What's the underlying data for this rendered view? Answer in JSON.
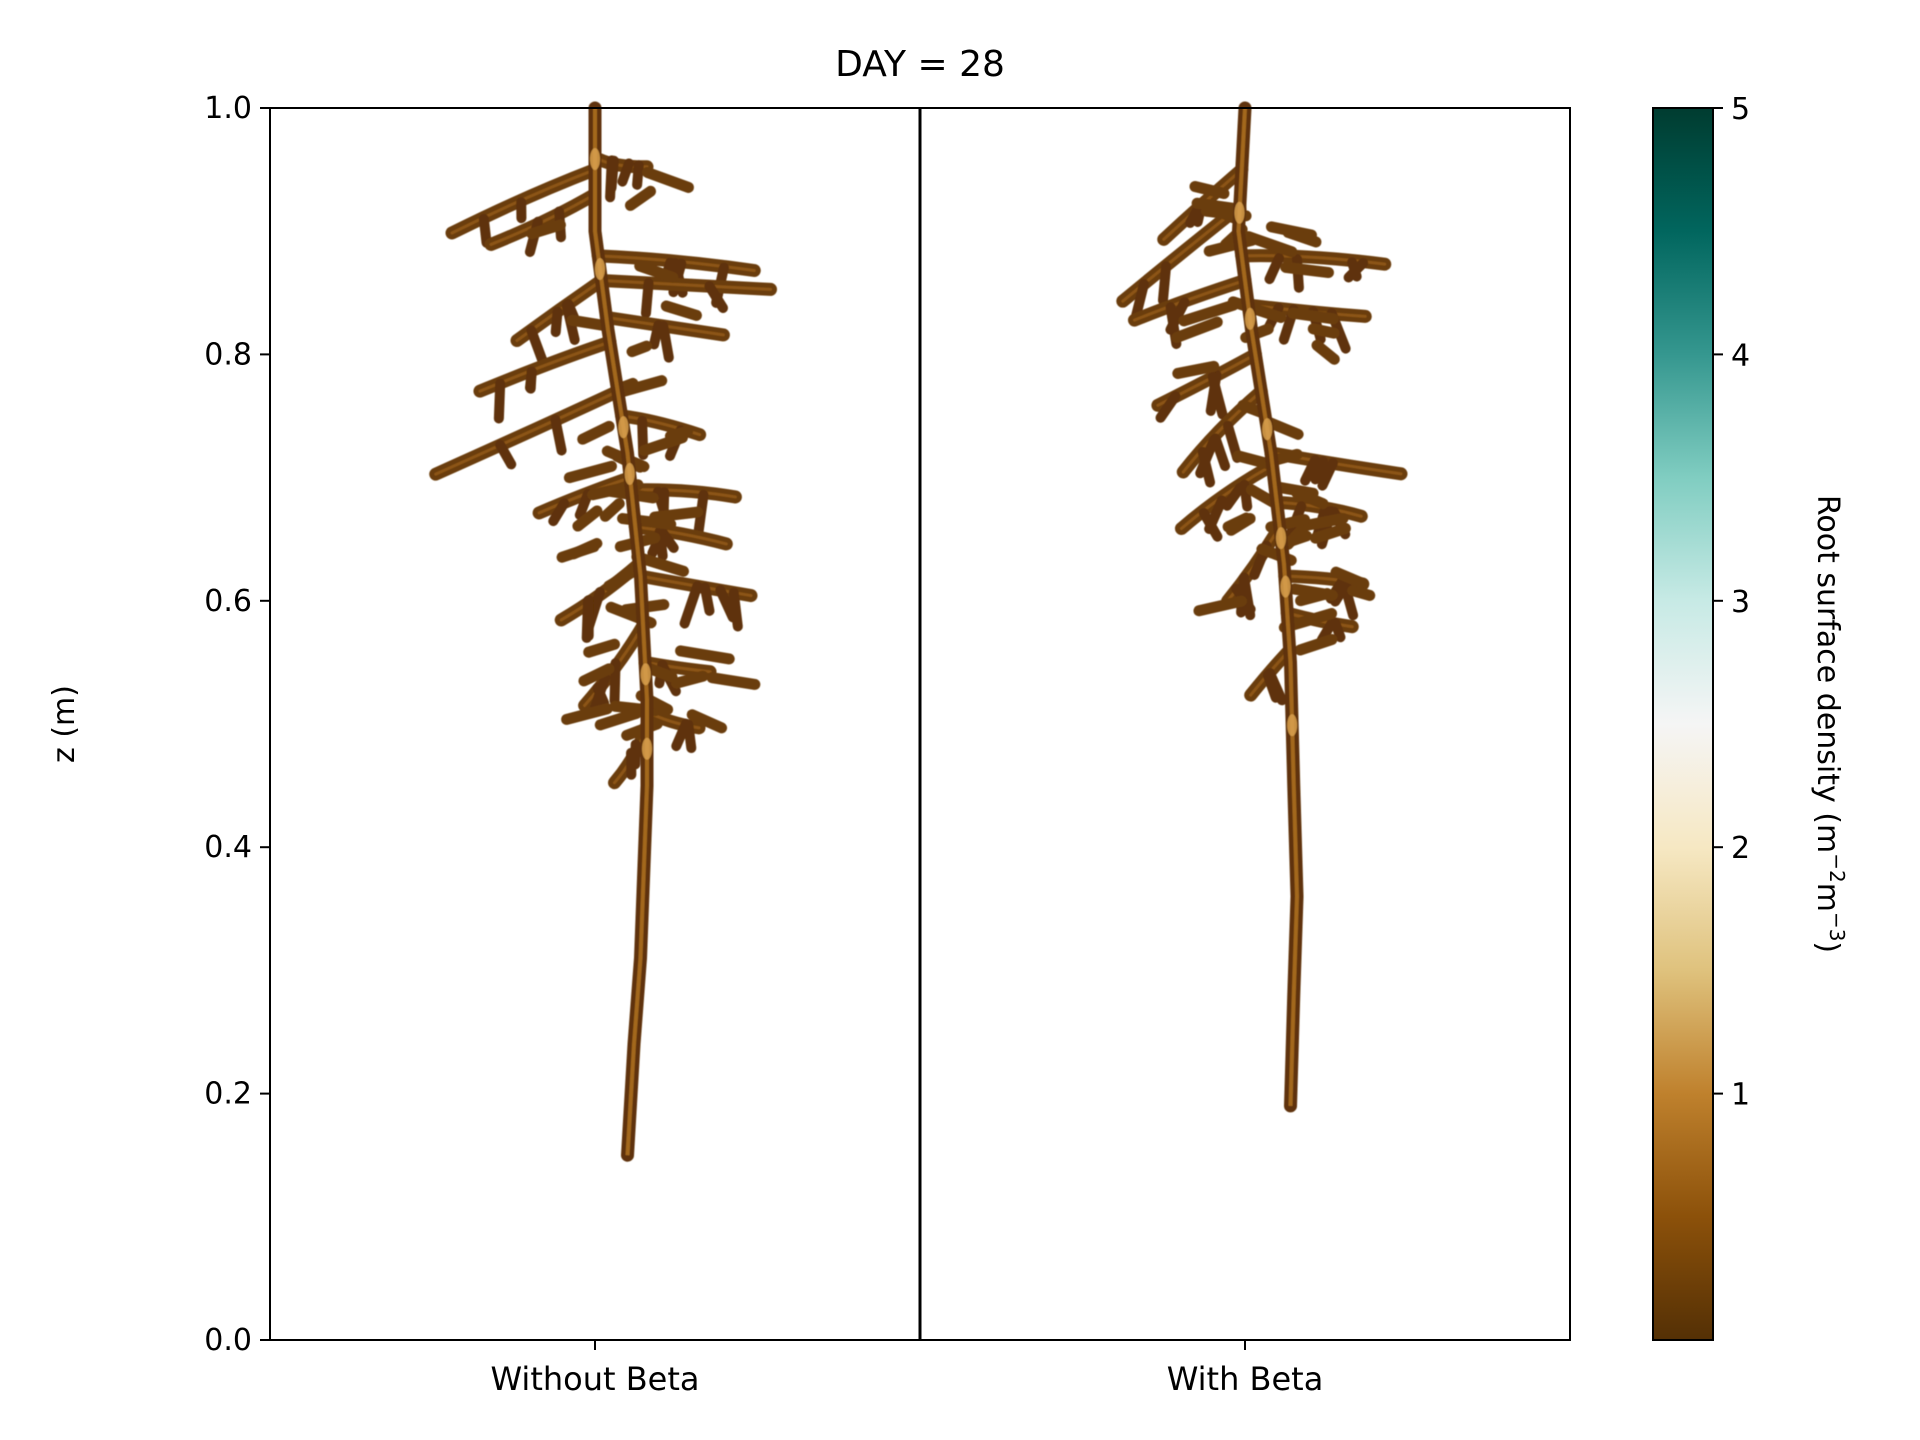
{
  "chart_data": {
    "type": "heatmap",
    "title": "DAY = 28",
    "ylabel": "z (m)",
    "ylim": [
      0.0,
      1.0
    ],
    "y_ticks": [
      "0.0",
      "0.2",
      "0.4",
      "0.6",
      "0.8",
      "1.0"
    ],
    "panels": [
      {
        "label": "Without Beta",
        "taproot_bottom_z": 0.15,
        "lateral_zone": [
          0.5,
          0.95
        ],
        "taproot_path": [
          [
            0.0,
            1.0
          ],
          [
            0.0,
            0.9
          ],
          [
            0.02,
            0.82
          ],
          [
            0.05,
            0.72
          ],
          [
            0.07,
            0.62
          ],
          [
            0.08,
            0.52
          ],
          [
            0.08,
            0.45
          ],
          [
            0.075,
            0.38
          ],
          [
            0.07,
            0.31
          ],
          [
            0.06,
            0.24
          ],
          [
            0.05,
            0.15
          ]
        ],
        "laterals": [
          {
            "z": 0.95,
            "dir": -1,
            "len": 0.22
          },
          {
            "z": 0.93,
            "dir": -1,
            "len": 0.16
          },
          {
            "z": 0.96,
            "dir": 1,
            "len": 0.08
          },
          {
            "z": 0.88,
            "dir": 1,
            "len": 0.24
          },
          {
            "z": 0.86,
            "dir": 1,
            "len": 0.26
          },
          {
            "z": 0.86,
            "dir": -1,
            "len": 0.13
          },
          {
            "z": 0.83,
            "dir": 1,
            "len": 0.18
          },
          {
            "z": 0.81,
            "dir": -1,
            "len": 0.2
          },
          {
            "z": 0.77,
            "dir": -1,
            "len": 0.28
          },
          {
            "z": 0.75,
            "dir": 1,
            "len": 0.12
          },
          {
            "z": 0.7,
            "dir": -1,
            "len": 0.14
          },
          {
            "z": 0.69,
            "dir": 1,
            "len": 0.16
          },
          {
            "z": 0.66,
            "dir": 1,
            "len": 0.14
          },
          {
            "z": 0.63,
            "dir": -1,
            "len": 0.12
          },
          {
            "z": 0.62,
            "dir": 1,
            "len": 0.17
          },
          {
            "z": 0.58,
            "dir": -1,
            "len": 0.09
          },
          {
            "z": 0.55,
            "dir": 1,
            "len": 0.1
          },
          {
            "z": 0.51,
            "dir": 1,
            "len": 0.08
          },
          {
            "z": 0.5,
            "dir": -1,
            "len": 0.05
          }
        ]
      },
      {
        "label": "With Beta",
        "taproot_bottom_z": 0.19,
        "lateral_zone": [
          0.55,
          0.95
        ],
        "taproot_path": [
          [
            0.0,
            1.0
          ],
          [
            -0.01,
            0.9
          ],
          [
            0.01,
            0.82
          ],
          [
            0.04,
            0.72
          ],
          [
            0.06,
            0.63
          ],
          [
            0.07,
            0.55
          ],
          [
            0.075,
            0.45
          ],
          [
            0.08,
            0.36
          ],
          [
            0.075,
            0.28
          ],
          [
            0.07,
            0.19
          ]
        ],
        "laterals": [
          {
            "z": 0.95,
            "dir": -1,
            "len": 0.12
          },
          {
            "z": 0.92,
            "dir": -1,
            "len": 0.18
          },
          {
            "z": 0.88,
            "dir": 1,
            "len": 0.22
          },
          {
            "z": 0.86,
            "dir": -1,
            "len": 0.17
          },
          {
            "z": 0.84,
            "dir": 1,
            "len": 0.18
          },
          {
            "z": 0.8,
            "dir": -1,
            "len": 0.15
          },
          {
            "z": 0.77,
            "dir": -1,
            "len": 0.12
          },
          {
            "z": 0.72,
            "dir": 1,
            "len": 0.2
          },
          {
            "z": 0.71,
            "dir": -1,
            "len": 0.14
          },
          {
            "z": 0.68,
            "dir": 1,
            "len": 0.13
          },
          {
            "z": 0.66,
            "dir": -1,
            "len": 0.08
          },
          {
            "z": 0.62,
            "dir": 1,
            "len": 0.12
          },
          {
            "z": 0.59,
            "dir": 1,
            "len": 0.1
          },
          {
            "z": 0.56,
            "dir": -1,
            "len": 0.06
          }
        ]
      }
    ],
    "colorbar": {
      "label": "Root surface density (m",
      "label_sup1": "−2",
      "label_mid": "m",
      "label_sup2": "−3",
      "label_end": ")",
      "range": [
        0,
        5
      ],
      "ticks": [
        "1",
        "2",
        "3",
        "4",
        "5"
      ],
      "colormap": "BrBG",
      "colors": [
        "#543005",
        "#8c510a",
        "#bf812d",
        "#dfc27d",
        "#f6e8c3",
        "#f5f5f5",
        "#c7eae5",
        "#80cdc1",
        "#35978f",
        "#01665e",
        "#003c30"
      ]
    },
    "grid": false
  }
}
